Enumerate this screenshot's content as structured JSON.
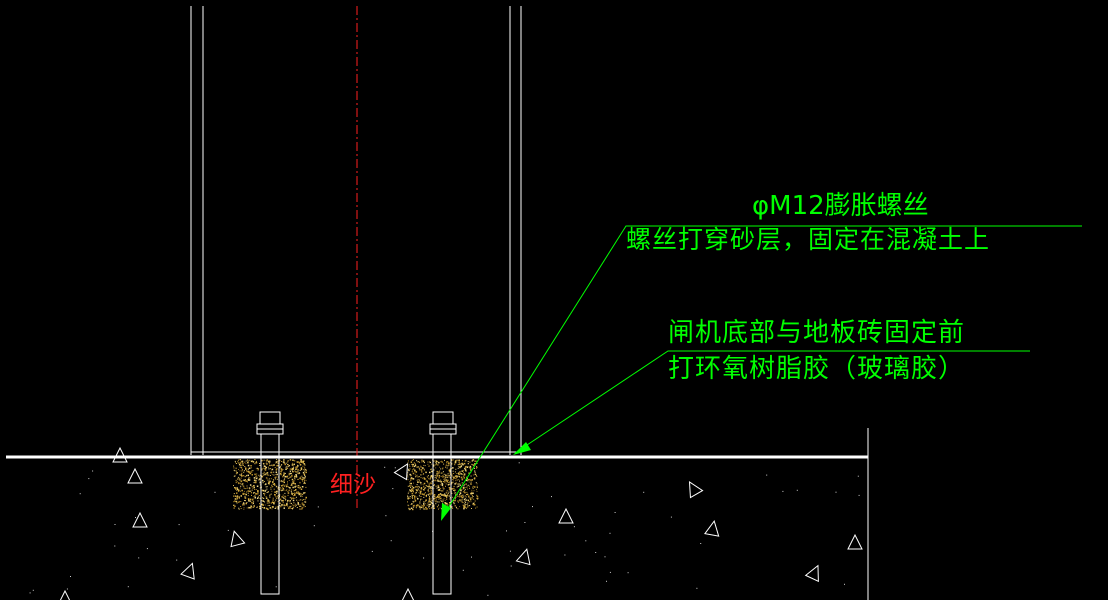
{
  "annotations": {
    "bolt_spec": "φM12膨胀螺丝",
    "bolt_note": "螺丝打穿砂层，固定在混凝土上",
    "glue_note_line1": "闸机底部与地板砖固定前",
    "glue_note_line2": "打环氧树脂胶（玻璃胶）",
    "sand_label": "细沙"
  },
  "colors": {
    "background": "#000000",
    "outline": "#ffffff",
    "annotation": "#00ff00",
    "centerline": "#ff2020",
    "sand": "#d4a838"
  },
  "icons": {
    "arrow": "leader-arrowhead-icon",
    "aggregate": "concrete-aggregate-triangle-icon"
  }
}
